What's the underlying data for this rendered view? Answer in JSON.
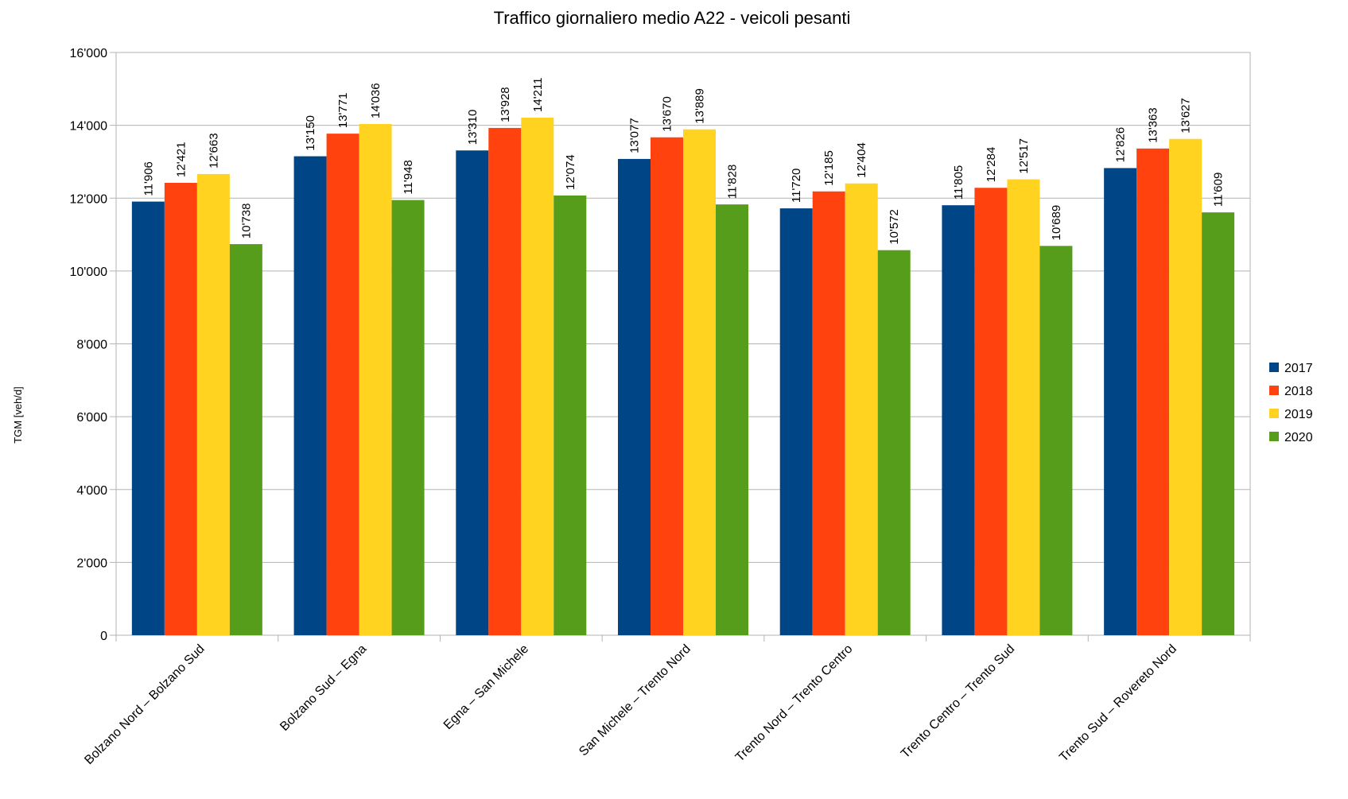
{
  "chart_data": {
    "type": "bar",
    "title": "Traffico giornaliero medio A22 - veicoli pesanti",
    "ylabel": "TGM [veh/d]",
    "xlabel": "",
    "ylim": [
      0,
      16000
    ],
    "yticks": [
      0,
      2000,
      4000,
      6000,
      8000,
      10000,
      12000,
      14000,
      16000
    ],
    "ytick_labels": [
      "0",
      "2'000",
      "4'000",
      "6'000",
      "8'000",
      "10'000",
      "12'000",
      "14'000",
      "16'000"
    ],
    "grid": true,
    "legend_position": "right",
    "categories": [
      "Bolzano Nord – Bolzano Sud",
      "Bolzano Sud – Egna",
      "Egna – San Michele",
      "San Michele – Trento Nord",
      "Trento Nord – Trento Centro",
      "Trento Centro – Trento Sud",
      "Trento Sud – Rovereto Nord"
    ],
    "series": [
      {
        "name": "2017",
        "color": "#004586",
        "values": [
          11906,
          13150,
          13310,
          13077,
          11720,
          11805,
          12826
        ],
        "labels": [
          "11'906",
          "13'150",
          "13'310",
          "13'077",
          "11'720",
          "11'805",
          "12'826"
        ]
      },
      {
        "name": "2018",
        "color": "#ff420e",
        "values": [
          12421,
          13771,
          13928,
          13670,
          12185,
          12284,
          13363
        ],
        "labels": [
          "12'421",
          "13'771",
          "13'928",
          "13'670",
          "12'185",
          "12'284",
          "13'363"
        ]
      },
      {
        "name": "2019",
        "color": "#ffd320",
        "values": [
          12663,
          14036,
          14211,
          13889,
          12404,
          12517,
          13627
        ],
        "labels": [
          "12'663",
          "14'036",
          "14'211",
          "13'889",
          "12'404",
          "12'517",
          "13'627"
        ]
      },
      {
        "name": "2020",
        "color": "#579d1c",
        "values": [
          10738,
          11948,
          12074,
          11828,
          10572,
          10689,
          11609
        ],
        "labels": [
          "10'738",
          "11'948",
          "12'074",
          "11'828",
          "10'572",
          "10'689",
          "11'609"
        ]
      }
    ]
  }
}
